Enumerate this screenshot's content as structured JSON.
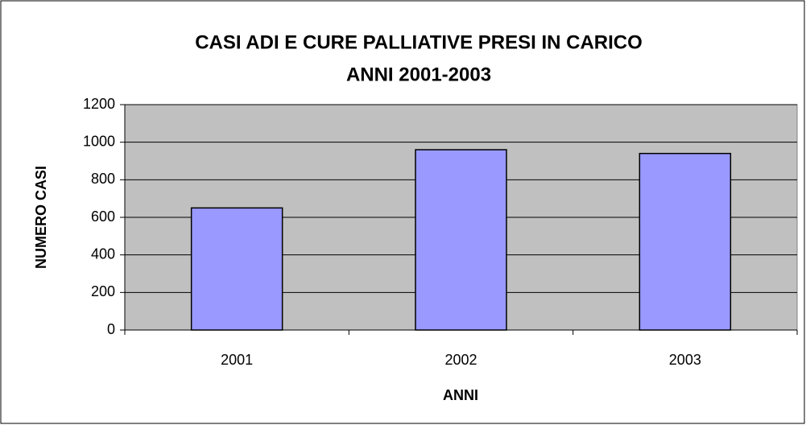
{
  "chart_data": {
    "type": "bar",
    "title": [
      "CASI ADI E CURE PALLIATIVE PRESI IN CARICO",
      "ANNI 2001-2003"
    ],
    "x_label": "ANNI",
    "y_label": "NUMERO CASI",
    "categories": [
      "2001",
      "2002",
      "2003"
    ],
    "values": [
      650,
      960,
      940
    ],
    "color": "#9999ff",
    "ylim": [
      0,
      1200
    ],
    "yticks": [
      0,
      200,
      400,
      600,
      800,
      1000,
      1200
    ],
    "grid": true
  }
}
